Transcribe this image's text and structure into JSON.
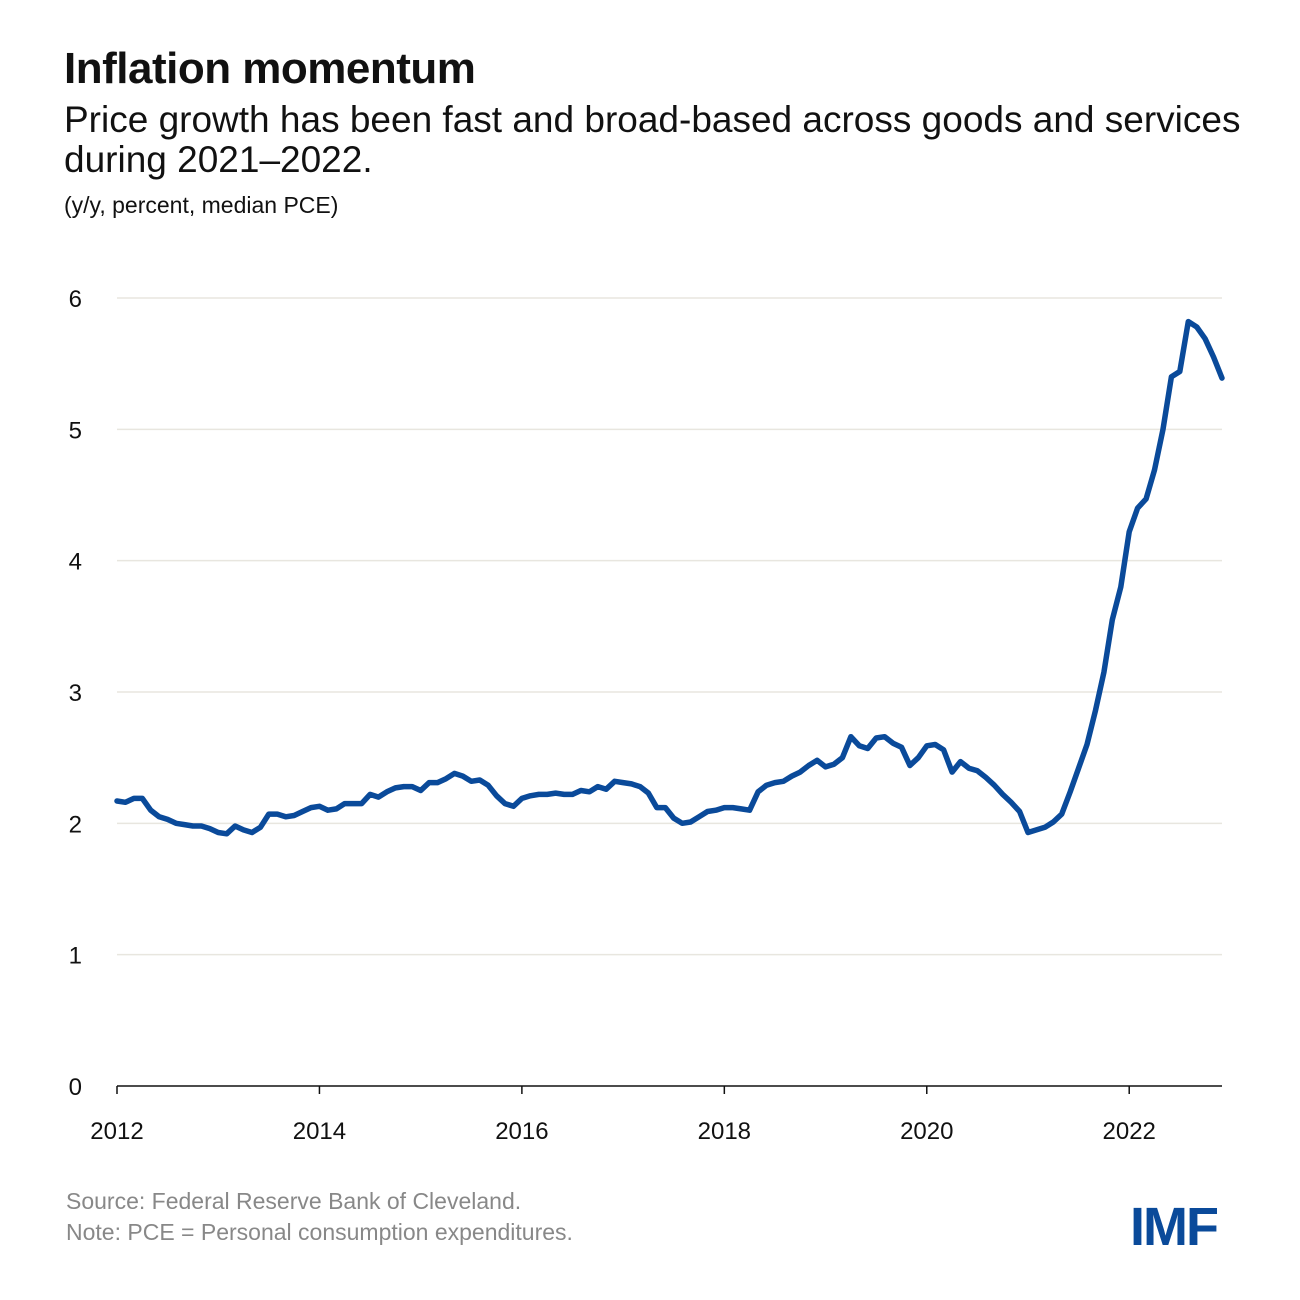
{
  "title": "Inflation momentum",
  "subtitle": "Price growth has been fast and broad-based across goods and services during 2021–2022.",
  "unit_note": "(y/y, percent, median PCE)",
  "source": "Source: Federal Reserve Bank of Cleveland.",
  "note": "Note: PCE = Personal consumption expenditures.",
  "logo": "IMF",
  "colors": {
    "line": "#0a4a9a",
    "grid": "#e8e6df",
    "logo": "#0a4a9a"
  },
  "chart_data": {
    "type": "line",
    "title": "Inflation momentum",
    "ylabel": "(y/y, percent, median PCE)",
    "xlabel": "",
    "ylim": [
      0,
      6
    ],
    "xlim": [
      "2012-01",
      "2022-12"
    ],
    "grid": true,
    "yticks": [
      "0",
      "1",
      "2",
      "3",
      "4",
      "5",
      "6"
    ],
    "xticks": [
      "2012",
      "2014",
      "2016",
      "2018",
      "2020",
      "2022"
    ],
    "start": "2012-01",
    "frequency": "monthly",
    "values": [
      2.17,
      2.16,
      2.19,
      2.19,
      2.1,
      2.05,
      2.03,
      2.0,
      1.99,
      1.98,
      1.98,
      1.96,
      1.93,
      1.92,
      1.98,
      1.95,
      1.93,
      1.97,
      2.07,
      2.07,
      2.05,
      2.06,
      2.09,
      2.12,
      2.13,
      2.1,
      2.11,
      2.15,
      2.15,
      2.15,
      2.22,
      2.2,
      2.24,
      2.27,
      2.28,
      2.28,
      2.25,
      2.31,
      2.31,
      2.34,
      2.38,
      2.36,
      2.32,
      2.33,
      2.29,
      2.21,
      2.15,
      2.13,
      2.19,
      2.21,
      2.22,
      2.22,
      2.23,
      2.22,
      2.22,
      2.25,
      2.24,
      2.28,
      2.26,
      2.32,
      2.31,
      2.3,
      2.28,
      2.23,
      2.12,
      2.12,
      2.04,
      2.0,
      2.01,
      2.05,
      2.09,
      2.1,
      2.12,
      2.12,
      2.11,
      2.1,
      2.24,
      2.29,
      2.31,
      2.32,
      2.36,
      2.39,
      2.44,
      2.48,
      2.43,
      2.45,
      2.5,
      2.66,
      2.59,
      2.57,
      2.65,
      2.66,
      2.61,
      2.58,
      2.44,
      2.5,
      2.59,
      2.6,
      2.56,
      2.39,
      2.47,
      2.42,
      2.4,
      2.35,
      2.29,
      2.22,
      2.16,
      2.09,
      1.93,
      1.95,
      1.97,
      2.01,
      2.07,
      2.24,
      2.42,
      2.6,
      2.86,
      3.15,
      3.55,
      3.8,
      4.22,
      4.4,
      4.47,
      4.69,
      5.0,
      5.4,
      5.44,
      5.82,
      5.78,
      5.69,
      5.55,
      5.39
    ]
  }
}
